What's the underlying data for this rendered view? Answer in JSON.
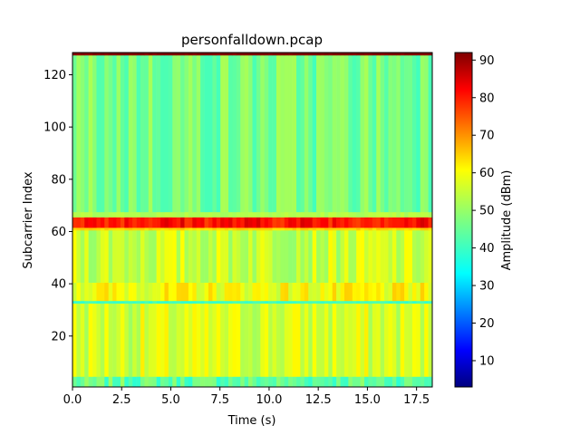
{
  "chart_data": {
    "type": "heatmap",
    "title": "personfalldown.pcap",
    "xlabel": "Time (s)",
    "ylabel": "Subcarrier Index",
    "colorbar_label": "Amplitude (dBm)",
    "colormap": "jet",
    "xlim": [
      0,
      18.3
    ],
    "ylim": [
      1,
      128
    ],
    "clim": [
      3,
      92
    ],
    "x_ticks": [
      0.0,
      2.5,
      5.0,
      7.5,
      10.0,
      12.5,
      15.0,
      17.5
    ],
    "x_tick_labels": [
      "0.0",
      "2.5",
      "5.0",
      "7.5",
      "10.0",
      "12.5",
      "15.0",
      "17.5"
    ],
    "y_ticks": [
      20,
      40,
      60,
      80,
      100,
      120
    ],
    "y_tick_labels": [
      "20",
      "40",
      "60",
      "80",
      "100",
      "120"
    ],
    "colorbar_ticks": [
      10,
      20,
      30,
      40,
      50,
      60,
      70,
      80,
      90
    ],
    "colorbar_tick_labels": [
      "10",
      "20",
      "30",
      "40",
      "50",
      "60",
      "70",
      "80",
      "90"
    ],
    "grid": false,
    "bands": [
      {
        "subcarriers": [
          1,
          4
        ],
        "amplitude_dbm": 45
      },
      {
        "subcarriers": [
          5,
          32
        ],
        "amplitude_dbm": 55
      },
      {
        "subcarriers": [
          33,
          33
        ],
        "amplitude_dbm": 42
      },
      {
        "subcarriers": [
          34,
          40
        ],
        "amplitude_dbm": 58
      },
      {
        "subcarriers": [
          41,
          60
        ],
        "amplitude_dbm": 54
      },
      {
        "subcarriers": [
          61,
          61
        ],
        "amplitude_dbm": 62
      },
      {
        "subcarriers": [
          62,
          65
        ],
        "amplitude_dbm": 80
      },
      {
        "subcarriers": [
          66,
          67
        ],
        "amplitude_dbm": 52
      },
      {
        "subcarriers": [
          68,
          127
        ],
        "amplitude_dbm": 47
      },
      {
        "subcarriers": [
          128,
          128
        ],
        "amplitude_dbm": 92
      }
    ]
  }
}
